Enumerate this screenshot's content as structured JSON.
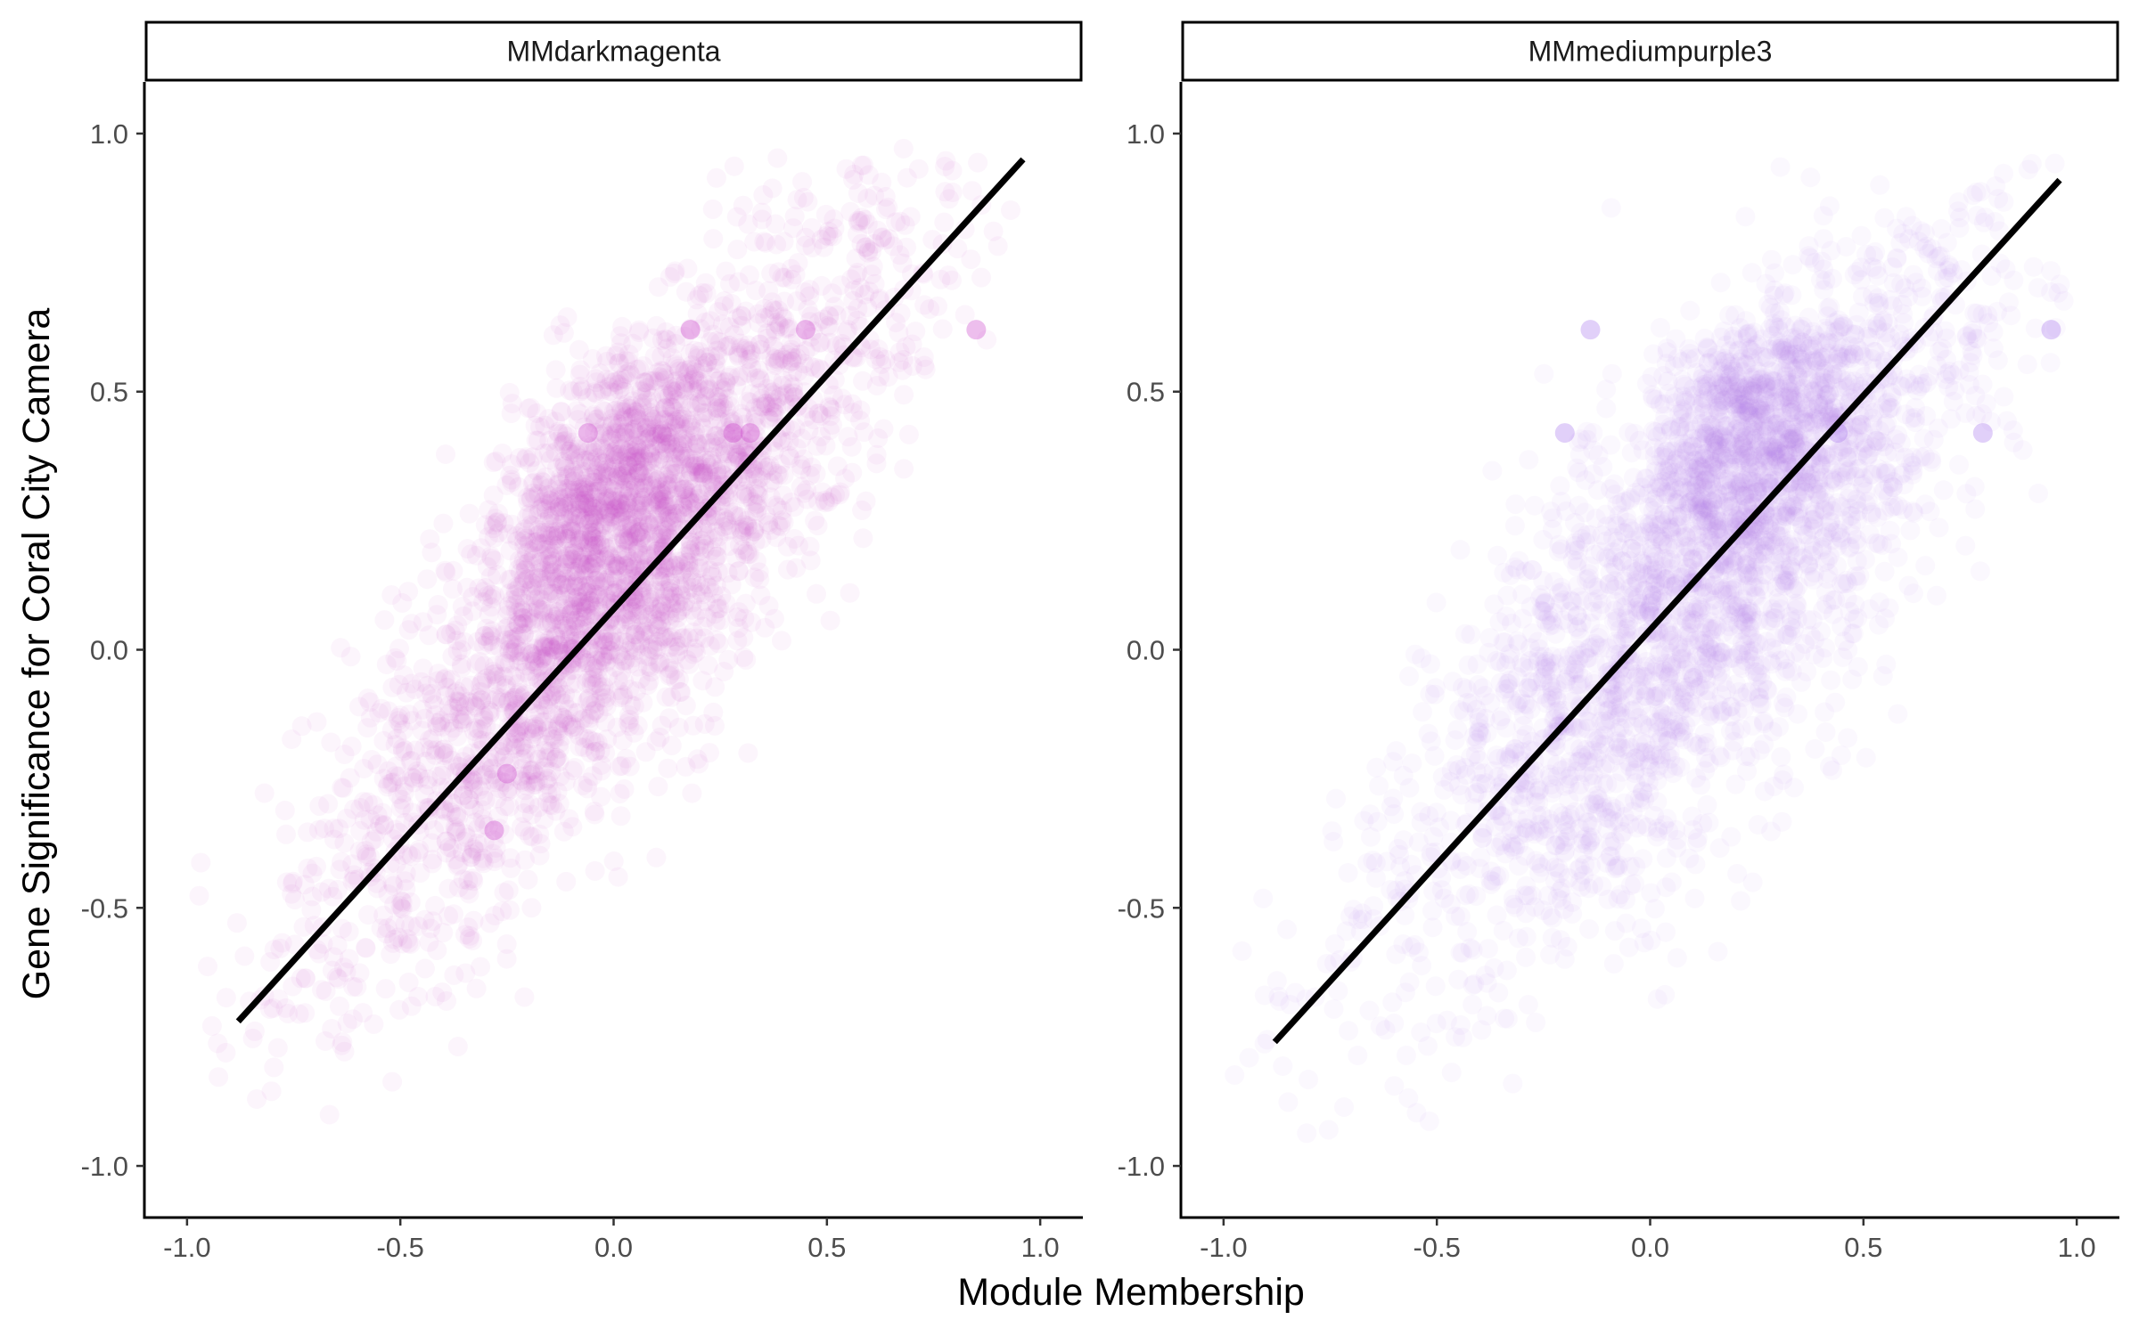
{
  "chart_data": {
    "type": "scatter",
    "xlabel": "Module Membership",
    "ylabel": "Gene Significance for Coral City Camera",
    "xlim": [
      -1.1,
      1.1
    ],
    "ylim": [
      -1.1,
      1.1
    ],
    "x_ticks": [
      -1.0,
      -0.5,
      0.0,
      0.5,
      1.0
    ],
    "y_ticks": [
      -1.0,
      -0.5,
      0.0,
      0.5,
      1.0
    ],
    "x_tick_labels": [
      "-1.0",
      "-0.5",
      "0.0",
      "0.5",
      "1.0"
    ],
    "y_tick_labels": [
      "-1.0",
      "-0.5",
      "0.0",
      "0.5",
      "1.0"
    ],
    "grid": false,
    "legend": "none",
    "line_color": "#000000",
    "panels": [
      {
        "strip": "MMdarkmagenta",
        "point_color": "#cc44cc",
        "point_opacity": 0.05,
        "fit_line": {
          "x": [
            -0.88,
            0.96
          ],
          "y": [
            -0.72,
            0.95
          ]
        },
        "cloud": {
          "x_mean": 0.0,
          "x_sd": 0.36,
          "slope": 0.88,
          "intercept": 0.12,
          "noise_sd": 0.19,
          "dense_center": [
            0.0,
            0.33
          ]
        },
        "highlight_points": [
          {
            "x": 0.45,
            "y": 0.62
          },
          {
            "x": -0.06,
            "y": 0.42
          },
          {
            "x": 0.28,
            "y": 0.42
          },
          {
            "x": 0.32,
            "y": 0.42
          },
          {
            "x": -0.25,
            "y": -0.24
          },
          {
            "x": -0.28,
            "y": -0.35
          },
          {
            "x": 0.18,
            "y": 0.62
          },
          {
            "x": 0.85,
            "y": 0.62
          }
        ]
      },
      {
        "strip": "MMmediumpurple3",
        "point_color": "#aa77ee",
        "point_opacity": 0.05,
        "fit_line": {
          "x": [
            -0.88,
            0.96
          ],
          "y": [
            -0.76,
            0.91
          ]
        },
        "cloud": {
          "x_mean": 0.1,
          "x_sd": 0.36,
          "slope": 0.8,
          "intercept": 0.02,
          "noise_sd": 0.23,
          "dense_center": [
            0.25,
            0.43
          ]
        },
        "highlight_points": [
          {
            "x": -0.2,
            "y": 0.42
          },
          {
            "x": 0.78,
            "y": 0.42
          },
          {
            "x": 0.94,
            "y": 0.62
          },
          {
            "x": -0.14,
            "y": 0.62
          },
          {
            "x": 0.44,
            "y": 0.42
          }
        ]
      }
    ]
  }
}
